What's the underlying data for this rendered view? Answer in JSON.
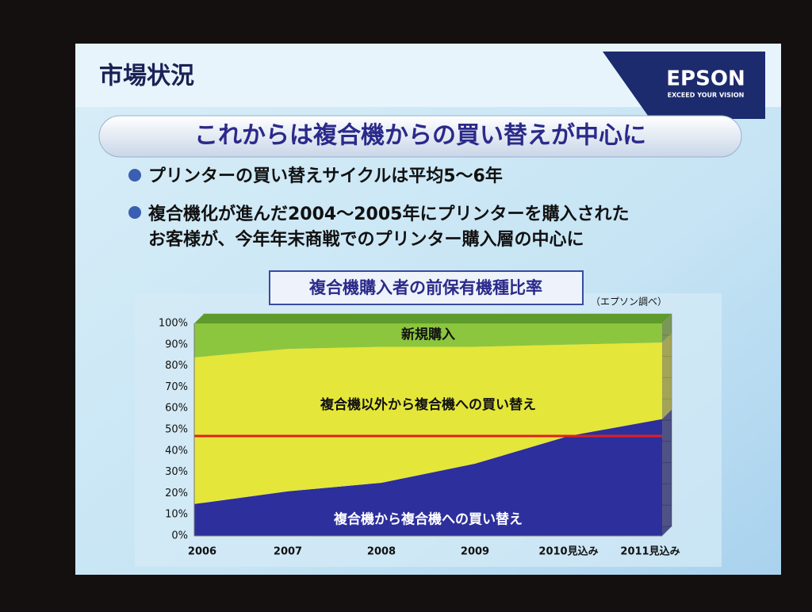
{
  "slide": {
    "title": "市場状況",
    "logo": "EPSON",
    "logo_tagline": "EXCEED YOUR VISION",
    "banner": "これからは複合機からの買い替えが中心に",
    "bullets": [
      "プリンターの買い替えサイクルは平均5～6年",
      "複合機化が進んだ2004～2005年にプリンターを購入された",
      "お客様が、今年年末商戦でのプリンター購入層の中心に"
    ]
  },
  "chart_data": {
    "type": "stacked_area",
    "title": "複合機購入者の前保有機種比率",
    "source": "（エプソン調べ）",
    "categories": [
      "2006",
      "2007",
      "2008",
      "2009",
      "2010見込み",
      "2011見込み"
    ],
    "series": [
      {
        "name": "複合機から複合機への買い替え",
        "color": "#2d2f9c",
        "values": [
          15,
          21,
          25,
          34,
          47,
          55
        ]
      },
      {
        "name": "複合機以外から複合機への買い替え",
        "color": "#e4e63a",
        "values": [
          69,
          67,
          64,
          55,
          43,
          36
        ]
      },
      {
        "name": "新規購入",
        "color": "#8cc63e",
        "values": [
          16,
          12,
          11,
          11,
          10,
          9
        ]
      }
    ],
    "reference_line": {
      "value": 47,
      "color": "#e0201c"
    },
    "ylim": [
      0,
      100
    ],
    "yticks": [
      {
        "value": 0,
        "label": "0%"
      },
      {
        "value": 10,
        "label": "10%"
      },
      {
        "value": 20,
        "label": "20%"
      },
      {
        "value": 30,
        "label": "30%"
      },
      {
        "value": 40,
        "label": "40%"
      },
      {
        "value": 50,
        "label": "50%"
      },
      {
        "value": 60,
        "label": "60%"
      },
      {
        "value": 70,
        "label": "70%"
      },
      {
        "value": 80,
        "label": "80%"
      },
      {
        "value": 90,
        "label": "90%"
      },
      {
        "value": 100,
        "label": "100%"
      }
    ],
    "grid": true
  }
}
